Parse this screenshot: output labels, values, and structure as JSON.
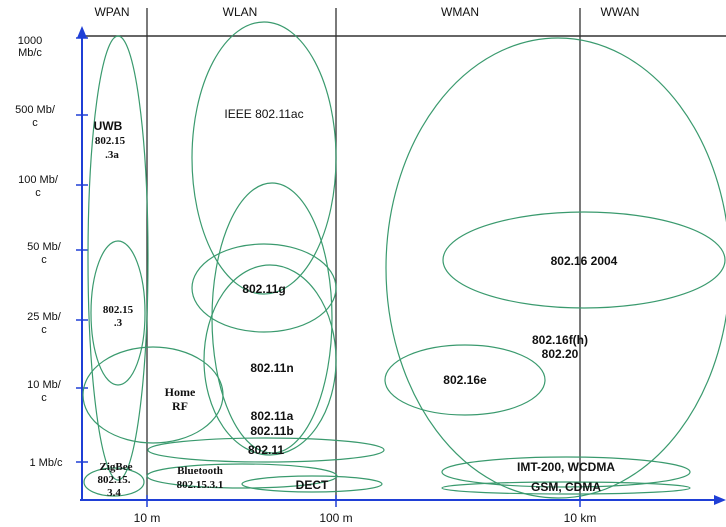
{
  "diagram": {
    "regions": {
      "wpan": "WPAN",
      "wlan": "WLAN",
      "wman": "WMAN",
      "wwan": "WWAN"
    },
    "y_labels": {
      "l1000_a": "1000",
      "l1000_b": "Mb/c",
      "l500_a": "500 Mb/",
      "l500_b": "c",
      "l100_a": "100 Mb/",
      "l100_b": "c",
      "l50_a": "50 Mb/",
      "l50_b": "c",
      "l25_a": "25 Mb/",
      "l25_b": "c",
      "l10_a": "10 Mb/",
      "l10_b": "c",
      "l1": "1 Mb/c"
    },
    "x_labels": {
      "x10m": "10 m",
      "x100m": "100 m",
      "x10km": "10 km"
    },
    "standards": {
      "uwb_title": "UWB",
      "uwb_l1": "802.15",
      "uwb_l2": ".3a",
      "pan3_l1": "802.15",
      "pan3_l2": ".3",
      "zigbee_l1": "ZigBee",
      "zigbee_l2": "802.15.",
      "zigbee_l3": "3.4",
      "homerf_l1": "Home",
      "homerf_l2": "RF",
      "bluetooth_l1": "Bluetooth",
      "bluetooth_l2": "802.15.3.1",
      "ieee_ac": "IEEE 802.11ac",
      "g": "802.11g",
      "n": "802.11n",
      "a": "802.11a",
      "b": "802.11b",
      "b11": "802.11",
      "dect": "DECT",
      "s16_2004": "802.16 2004",
      "s16f_l1": "802.16f(h)",
      "s16f_l2": "802.20",
      "s16e": "802.16e",
      "imt": "IMT-200, WCDMA",
      "gsm": "GSM, CDMA"
    },
    "colors": {
      "ellipse_stroke": "#3a9a6e",
      "axis_blue": "#1f3fd6",
      "grid_dark": "#333333",
      "text": "#111111"
    }
  }
}
